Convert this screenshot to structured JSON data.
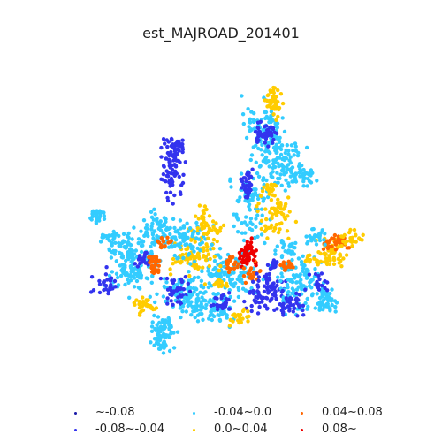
{
  "map": {
    "title": "est_MAJROAD_201401",
    "legend": [
      {
        "label": "~-0.08",
        "color": "#1a1aa8"
      },
      {
        "label": "-0.08~-0.04",
        "color": "#3333ee"
      },
      {
        "label": "-0.04~0.0",
        "color": "#33ccff"
      },
      {
        "label": "0.0~0.04",
        "color": "#ffcc00"
      },
      {
        "label": "0.04~0.08",
        "color": "#ff6600"
      },
      {
        "label": "0.08~",
        "color": "#ee0000"
      }
    ]
  }
}
